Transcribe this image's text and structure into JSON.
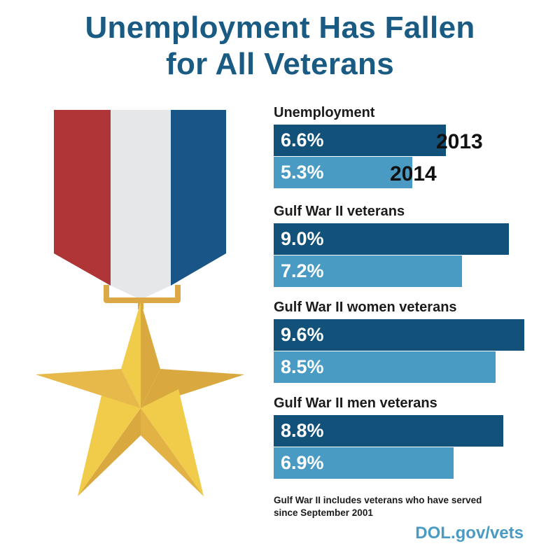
{
  "title_line1": "Unemployment Has Fallen",
  "title_line2": "for All Veterans",
  "colors": {
    "title": "#1a5b84",
    "bar_2013": "#12517a",
    "bar_2014": "#4a9bc4",
    "ribbon_red": "#b03537",
    "ribbon_white": "#e6e7e9",
    "ribbon_blue": "#1a5587",
    "star_gold": "#f0cc4a",
    "star_shadow": "#d9a93f"
  },
  "medal_icon": "medal-star-icon",
  "chart_data": {
    "type": "bar",
    "orientation": "horizontal",
    "value_format": "{v}%",
    "series_labels": [
      "2013",
      "2014"
    ],
    "groups": [
      {
        "label": "Unemployment",
        "values": [
          6.6,
          5.3
        ],
        "display": [
          "6.6%",
          "5.3%"
        ]
      },
      {
        "label": "Gulf War II veterans",
        "values": [
          9.0,
          7.2
        ],
        "display": [
          "9.0%",
          "7.2%"
        ]
      },
      {
        "label": "Gulf War II women veterans",
        "values": [
          9.6,
          8.5
        ],
        "display": [
          "9.6%",
          "8.5%"
        ]
      },
      {
        "label": "Gulf War II men veterans",
        "values": [
          8.8,
          6.9
        ],
        "display": [
          "8.8%",
          "6.9%"
        ]
      }
    ],
    "xlim": [
      0,
      9.6
    ],
    "grid": false
  },
  "footnote": "Gulf War II includes veterans who have served since September 2001",
  "source": "DOL.gov/vets"
}
